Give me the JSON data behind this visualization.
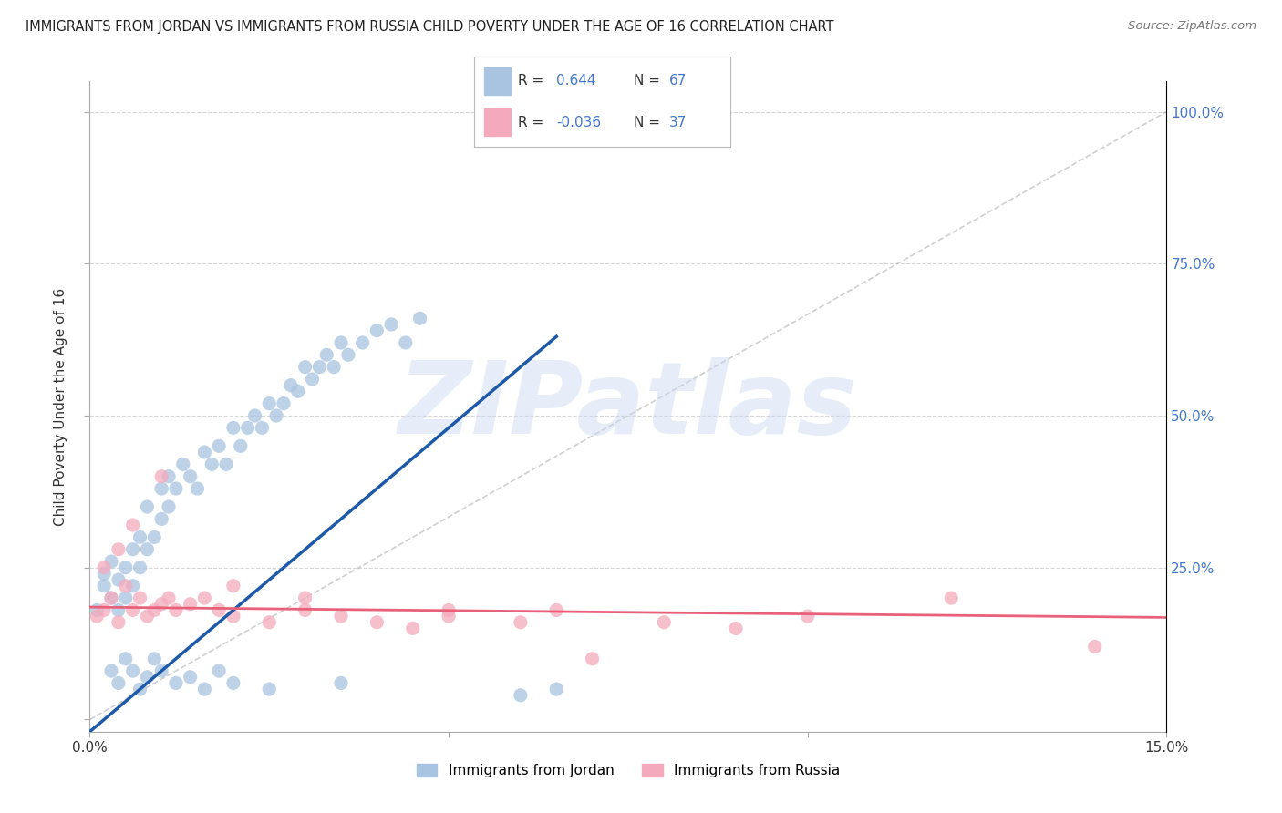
{
  "title": "IMMIGRANTS FROM JORDAN VS IMMIGRANTS FROM RUSSIA CHILD POVERTY UNDER THE AGE OF 16 CORRELATION CHART",
  "source": "Source: ZipAtlas.com",
  "ylabel": "Child Poverty Under the Age of 16",
  "xlabel_jordan": "Immigrants from Jordan",
  "xlabel_russia": "Immigrants from Russia",
  "xlim": [
    0.0,
    0.15
  ],
  "ylim": [
    -0.02,
    1.05
  ],
  "x_ticks": [
    0.0,
    0.05,
    0.1,
    0.15
  ],
  "x_tick_labels": [
    "0.0%",
    "",
    "",
    "15.0%"
  ],
  "y_ticks": [
    0.0,
    0.25,
    0.5,
    0.75,
    1.0
  ],
  "y_tick_labels_right": [
    "",
    "25.0%",
    "50.0%",
    "75.0%",
    "100.0%"
  ],
  "R_jordan": 0.644,
  "N_jordan": 67,
  "R_russia": -0.036,
  "N_russia": 37,
  "jordan_color": "#A8C4E0",
  "russia_color": "#F4AABC",
  "jordan_line_color": "#1E5AA8",
  "russia_line_color": "#E8607A",
  "watermark_text": "ZIPatlas",
  "background_color": "#FFFFFF",
  "grid_color": "#CCCCCC",
  "jordan_x": [
    0.001,
    0.002,
    0.002,
    0.003,
    0.003,
    0.004,
    0.004,
    0.005,
    0.005,
    0.006,
    0.006,
    0.007,
    0.007,
    0.008,
    0.008,
    0.009,
    0.01,
    0.01,
    0.011,
    0.011,
    0.012,
    0.013,
    0.014,
    0.015,
    0.016,
    0.017,
    0.018,
    0.019,
    0.02,
    0.021,
    0.022,
    0.023,
    0.024,
    0.025,
    0.026,
    0.027,
    0.028,
    0.029,
    0.03,
    0.031,
    0.032,
    0.033,
    0.034,
    0.035,
    0.036,
    0.038,
    0.04,
    0.042,
    0.044,
    0.046,
    0.003,
    0.004,
    0.005,
    0.006,
    0.007,
    0.008,
    0.009,
    0.01,
    0.012,
    0.014,
    0.016,
    0.018,
    0.02,
    0.025,
    0.035,
    0.06,
    0.065
  ],
  "jordan_y": [
    0.18,
    0.22,
    0.24,
    0.2,
    0.26,
    0.23,
    0.18,
    0.25,
    0.2,
    0.28,
    0.22,
    0.3,
    0.25,
    0.28,
    0.35,
    0.3,
    0.33,
    0.38,
    0.35,
    0.4,
    0.38,
    0.42,
    0.4,
    0.38,
    0.44,
    0.42,
    0.45,
    0.42,
    0.48,
    0.45,
    0.48,
    0.5,
    0.48,
    0.52,
    0.5,
    0.52,
    0.55,
    0.54,
    0.58,
    0.56,
    0.58,
    0.6,
    0.58,
    0.62,
    0.6,
    0.62,
    0.64,
    0.65,
    0.62,
    0.66,
    0.08,
    0.06,
    0.1,
    0.08,
    0.05,
    0.07,
    0.1,
    0.08,
    0.06,
    0.07,
    0.05,
    0.08,
    0.06,
    0.05,
    0.06,
    0.04,
    0.05
  ],
  "russia_x": [
    0.001,
    0.002,
    0.003,
    0.004,
    0.005,
    0.006,
    0.007,
    0.008,
    0.009,
    0.01,
    0.011,
    0.012,
    0.014,
    0.016,
    0.018,
    0.02,
    0.025,
    0.03,
    0.035,
    0.04,
    0.045,
    0.05,
    0.06,
    0.065,
    0.07,
    0.08,
    0.09,
    0.1,
    0.12,
    0.14,
    0.002,
    0.004,
    0.006,
    0.01,
    0.02,
    0.03,
    0.05
  ],
  "russia_y": [
    0.17,
    0.18,
    0.2,
    0.16,
    0.22,
    0.18,
    0.2,
    0.17,
    0.18,
    0.19,
    0.2,
    0.18,
    0.19,
    0.2,
    0.18,
    0.17,
    0.16,
    0.18,
    0.17,
    0.16,
    0.15,
    0.17,
    0.16,
    0.18,
    0.1,
    0.16,
    0.15,
    0.17,
    0.2,
    0.12,
    0.25,
    0.28,
    0.32,
    0.4,
    0.22,
    0.2,
    0.18
  ],
  "jordan_trend_x0": 0.0,
  "jordan_trend_y0": -0.02,
  "jordan_trend_x1": 0.065,
  "jordan_trend_y1": 0.63,
  "russia_trend_x0": 0.0,
  "russia_trend_y0": 0.185,
  "russia_trend_x1": 0.15,
  "russia_trend_y1": 0.168
}
